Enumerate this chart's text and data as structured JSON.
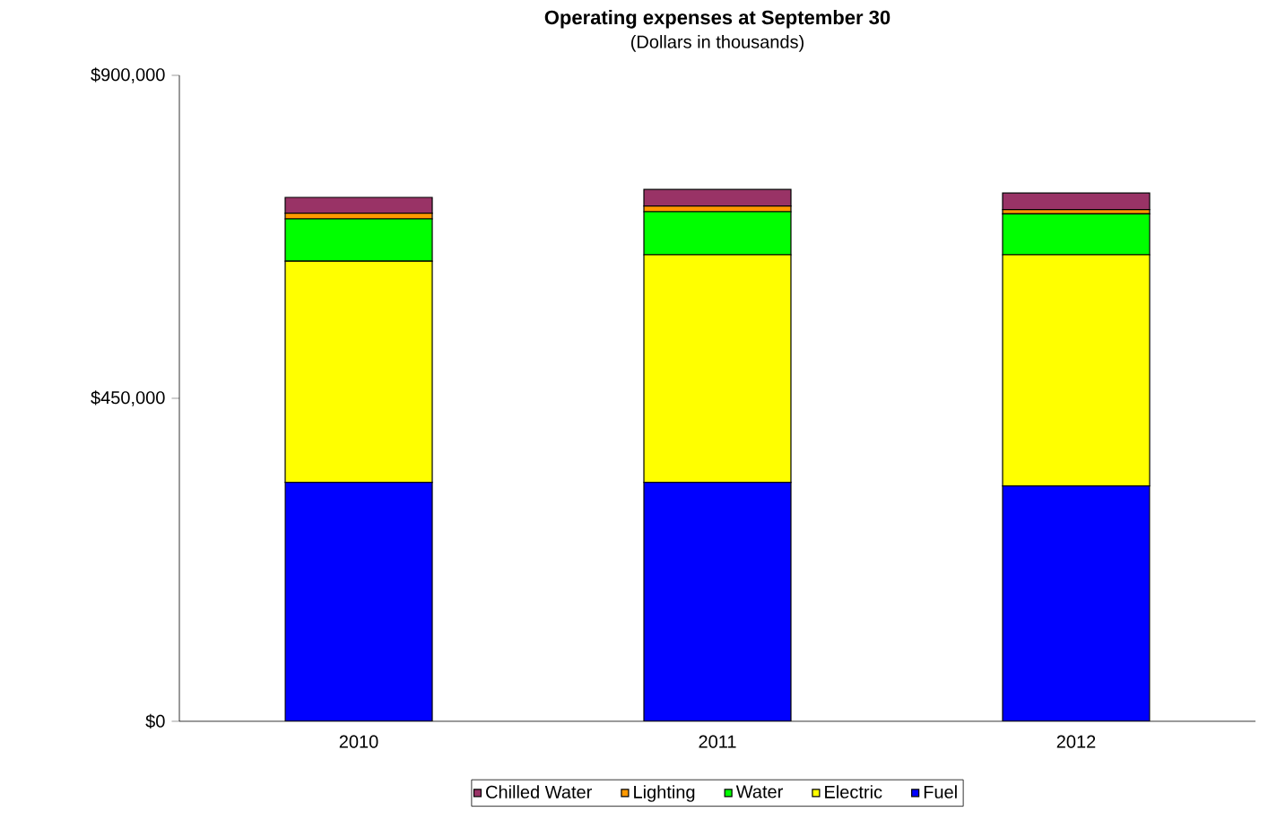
{
  "chart_data": {
    "type": "bar",
    "stacked": true,
    "title": "Operating expenses at September 30",
    "subtitle": "(Dollars  in thousands)",
    "categories": [
      "2010",
      "2011",
      "2012"
    ],
    "series": [
      {
        "name": "Fuel",
        "color": "#0000ff",
        "values": [
          333000,
          333000,
          328000
        ]
      },
      {
        "name": "Electric",
        "color": "#ffff00",
        "values": [
          308000,
          317000,
          322000
        ]
      },
      {
        "name": "Water",
        "color": "#00ff00",
        "values": [
          59000,
          60000,
          57000
        ]
      },
      {
        "name": "Lighting",
        "color": "#ff9900",
        "values": [
          8000,
          8000,
          6000
        ]
      },
      {
        "name": "Chilled Water",
        "color": "#993366",
        "values": [
          22000,
          23000,
          23000
        ]
      }
    ],
    "ylim": [
      0,
      900000
    ],
    "yticks": [
      {
        "value": 0,
        "label": "$0"
      },
      {
        "value": 450000,
        "label": "$450,000"
      },
      {
        "value": 900000,
        "label": "$900,000"
      }
    ],
    "grid": false,
    "legend": "bottom"
  }
}
